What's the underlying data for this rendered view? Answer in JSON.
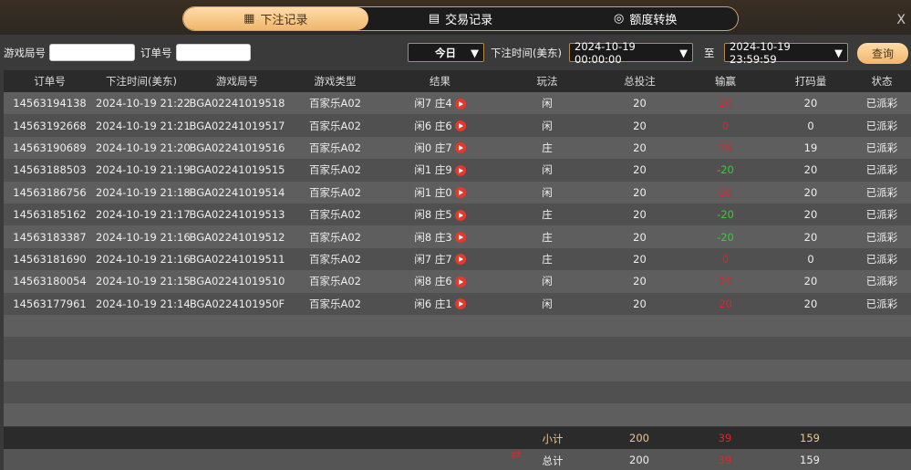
{
  "tabs": [
    {
      "label": "下注记录",
      "icon": "calendar-icon",
      "active": true
    },
    {
      "label": "交易记录",
      "icon": "clipboard-icon"
    },
    {
      "label": "额度转换",
      "icon": "coins-icon"
    }
  ],
  "close_label": "X",
  "filter": {
    "game_round_label": "游戏局号",
    "game_round_value": "",
    "order_label": "订单号",
    "order_value": "",
    "period": "今日",
    "time_label": "下注时间(美东)",
    "start": "2024-10-19 00:00:00",
    "to_label": "至",
    "end": "2024-10-19 23:59:59",
    "query_label": "查询"
  },
  "columns": [
    "订单号",
    "下注时间(美东)",
    "游戏局号",
    "游戏类型",
    "结果",
    "玩法",
    "总投注",
    "输赢",
    "打码量",
    "状态"
  ],
  "rows": [
    [
      "14563194138",
      "2024-10-19 21:22",
      "BGA02241019518",
      "百家乐A02",
      "闲7 庄4",
      "闲",
      "20",
      "20",
      "20",
      "已派彩"
    ],
    [
      "14563192668",
      "2024-10-19 21:21",
      "BGA02241019517",
      "百家乐A02",
      "闲6 庄6",
      "闲",
      "20",
      "0",
      "0",
      "已派彩"
    ],
    [
      "14563190689",
      "2024-10-19 21:20",
      "BGA02241019516",
      "百家乐A02",
      "闲0 庄7",
      "庄",
      "20",
      "19",
      "19",
      "已派彩"
    ],
    [
      "14563188503",
      "2024-10-19 21:19",
      "BGA02241019515",
      "百家乐A02",
      "闲1 庄9",
      "闲",
      "20",
      "-20",
      "20",
      "已派彩"
    ],
    [
      "14563186756",
      "2024-10-19 21:18",
      "BGA02241019514",
      "百家乐A02",
      "闲1 庄0",
      "闲",
      "20",
      "20",
      "20",
      "已派彩"
    ],
    [
      "14563185162",
      "2024-10-19 21:17",
      "BGA02241019513",
      "百家乐A02",
      "闲8 庄5",
      "庄",
      "20",
      "-20",
      "20",
      "已派彩"
    ],
    [
      "14563183387",
      "2024-10-19 21:16",
      "BGA02241019512",
      "百家乐A02",
      "闲8 庄3",
      "庄",
      "20",
      "-20",
      "20",
      "已派彩"
    ],
    [
      "14563181690",
      "2024-10-19 21:16",
      "BGA02241019511",
      "百家乐A02",
      "闲7 庄7",
      "庄",
      "20",
      "0",
      "0",
      "已派彩"
    ],
    [
      "14563180054",
      "2024-10-19 21:15",
      "BGA02241019510",
      "百家乐A02",
      "闲8 庄6",
      "闲",
      "20",
      "20",
      "20",
      "已派彩"
    ],
    [
      "14563177961",
      "2024-10-19 21:14",
      "BGA0224101950F",
      "百家乐A02",
      "闲6 庄1",
      "闲",
      "20",
      "20",
      "20",
      "已派彩"
    ]
  ],
  "subtotal": {
    "label": "小计",
    "bet": "200",
    "winloss": "39",
    "turnover": "159"
  },
  "total": {
    "label": "总计",
    "bet": "200",
    "winloss": "39",
    "turnover": "159",
    "icon": "refresh-arrows-icon"
  },
  "colors": {
    "accent": "#f0b66c",
    "win": "#e0242a",
    "loss": "#31d12c"
  }
}
